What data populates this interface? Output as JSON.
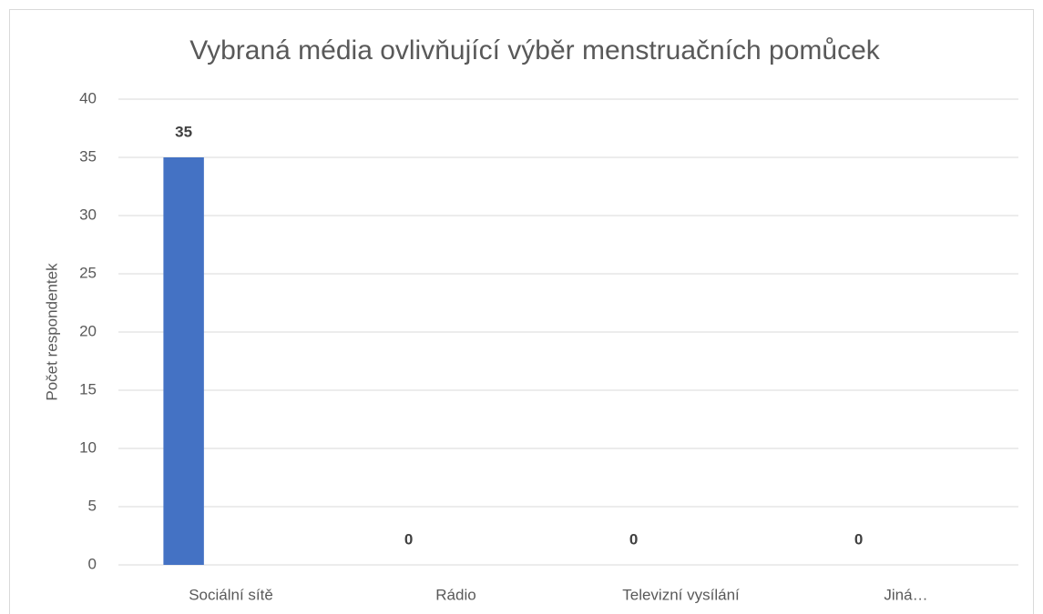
{
  "chart_data": {
    "type": "bar",
    "title": "Vybraná média ovlivňující výběr menstruačních pomůcek",
    "ylabel": "Počet respondentek",
    "categories": [
      "Sociální sítě",
      "Rádio",
      "Televizní vysílání",
      "Jiná…"
    ],
    "values": [
      35,
      0,
      0,
      0
    ],
    "color": "#4472c4",
    "ylim": [
      0,
      40
    ],
    "yticks": [
      0,
      5,
      10,
      15,
      20,
      25,
      30,
      35,
      40
    ],
    "grid": true
  }
}
